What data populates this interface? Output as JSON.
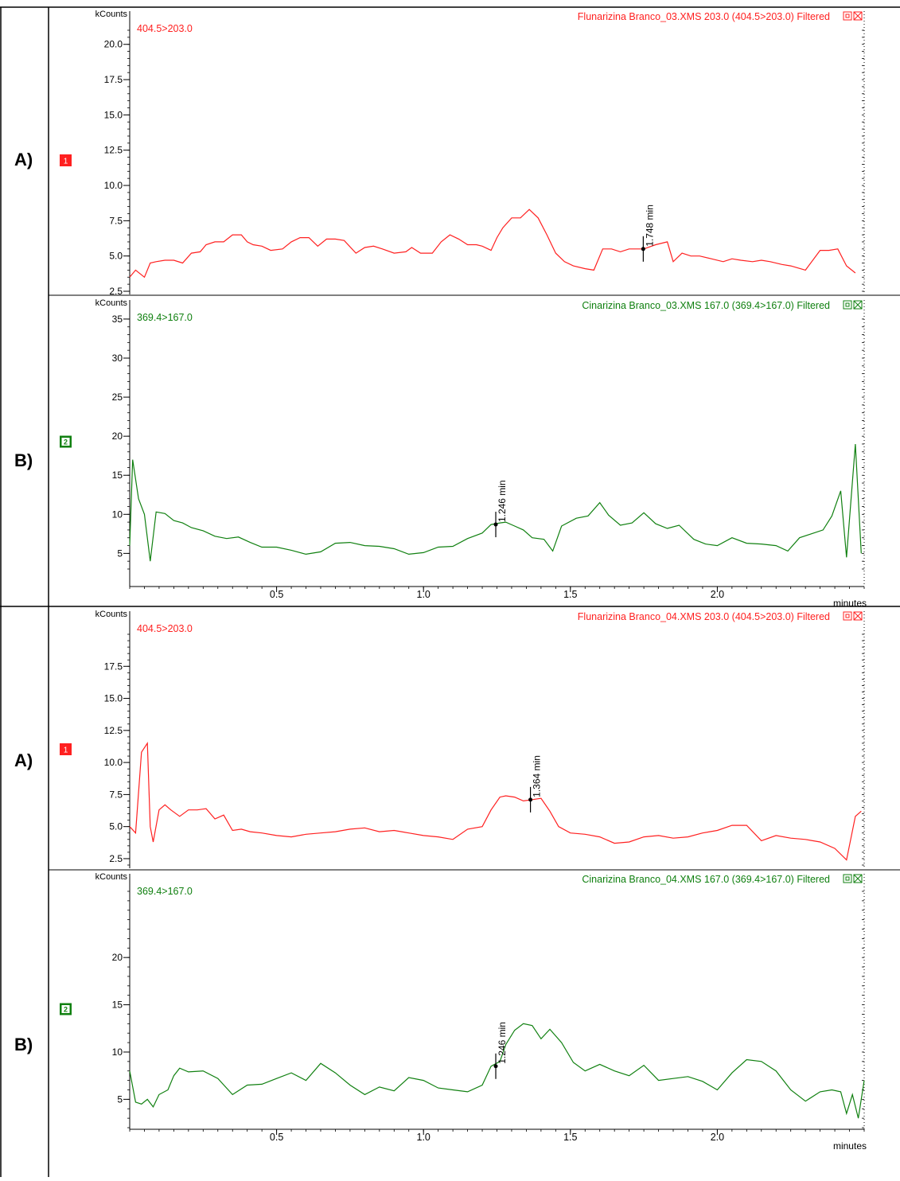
{
  "section_labels": [
    "A)",
    "B)",
    "A)",
    "B)"
  ],
  "colors": {
    "red": "#ff2020",
    "green": "#108010",
    "axis": "#000000"
  },
  "chart_data": [
    {
      "type": "line",
      "series_color": "#ff2020",
      "header": "Flunarizina Branco_03.XMS 203.0 (404.5>203.0) Filtered",
      "trace_label": "404.5>203.0",
      "ylabel": "kCounts",
      "badge": "1",
      "ylim": [
        2.5,
        21.0
      ],
      "xlim": [
        0,
        2.5
      ],
      "yticks": [
        2.5,
        5.0,
        7.5,
        10.0,
        12.5,
        15.0,
        17.5,
        20.0
      ],
      "ytick_labels": [
        "2.5",
        "5.0",
        "7.5",
        "10.0",
        "12.5",
        "15.0",
        "17.5",
        "20.0"
      ],
      "annotation": {
        "x": 1.748,
        "y": 5.5,
        "label": "1.748 min"
      },
      "x": [
        0.0,
        0.02,
        0.05,
        0.07,
        0.09,
        0.12,
        0.15,
        0.18,
        0.21,
        0.24,
        0.26,
        0.29,
        0.32,
        0.35,
        0.38,
        0.4,
        0.42,
        0.45,
        0.48,
        0.52,
        0.55,
        0.58,
        0.61,
        0.64,
        0.67,
        0.7,
        0.73,
        0.77,
        0.8,
        0.83,
        0.86,
        0.9,
        0.94,
        0.96,
        0.99,
        1.03,
        1.06,
        1.09,
        1.12,
        1.15,
        1.18,
        1.2,
        1.23,
        1.25,
        1.27,
        1.3,
        1.33,
        1.36,
        1.39,
        1.42,
        1.45,
        1.48,
        1.51,
        1.55,
        1.58,
        1.61,
        1.64,
        1.67,
        1.7,
        1.73,
        1.75,
        1.79,
        1.83,
        1.85,
        1.88,
        1.91,
        1.94,
        1.98,
        2.02,
        2.05,
        2.08,
        2.12,
        2.15,
        2.18,
        2.22,
        2.25,
        2.3,
        2.35,
        2.38,
        2.41,
        2.44,
        2.47
      ],
      "values": [
        3.5,
        4.0,
        3.5,
        4.5,
        4.6,
        4.7,
        4.7,
        4.5,
        5.2,
        5.3,
        5.8,
        6.0,
        6.0,
        6.5,
        6.5,
        6.0,
        5.8,
        5.7,
        5.4,
        5.5,
        6.0,
        6.3,
        6.3,
        5.7,
        6.2,
        6.2,
        6.1,
        5.2,
        5.6,
        5.7,
        5.5,
        5.2,
        5.3,
        5.6,
        5.2,
        5.2,
        6.0,
        6.5,
        6.2,
        5.8,
        5.8,
        5.7,
        5.4,
        6.3,
        7.0,
        7.7,
        7.7,
        8.3,
        7.7,
        6.5,
        5.2,
        4.6,
        4.3,
        4.1,
        4.0,
        5.5,
        5.5,
        5.3,
        5.5,
        5.5,
        5.5,
        5.8,
        6.0,
        4.6,
        5.2,
        5.0,
        5.0,
        4.8,
        4.6,
        4.8,
        4.7,
        4.6,
        4.7,
        4.6,
        4.4,
        4.3,
        4.0,
        5.4,
        5.4,
        5.5,
        4.3,
        3.8
      ]
    },
    {
      "type": "line",
      "series_color": "#108010",
      "header": "Cinarizina Branco_03.XMS 167.0 (369.4>167.0) Filtered",
      "trace_label": "369.4>167.0",
      "ylabel": "kCounts",
      "badge": "2",
      "ylim": [
        3.0,
        35.5
      ],
      "xlim": [
        0,
        2.5
      ],
      "yticks": [
        5,
        10,
        15,
        20,
        25,
        30,
        35
      ],
      "ytick_labels": [
        "5",
        "10",
        "15",
        "20",
        "25",
        "30",
        "35"
      ],
      "xticks": [
        0.5,
        1.0,
        1.5,
        2.0
      ],
      "xtick_labels": [
        "0.5",
        "1.0",
        "1.5",
        "2.0"
      ],
      "xlabel": "minutes",
      "annotation": {
        "x": 1.246,
        "y": 8.7,
        "label": "1.246 min"
      },
      "x": [
        0.0,
        0.01,
        0.03,
        0.05,
        0.07,
        0.09,
        0.12,
        0.15,
        0.18,
        0.21,
        0.25,
        0.29,
        0.33,
        0.37,
        0.41,
        0.45,
        0.5,
        0.55,
        0.6,
        0.65,
        0.7,
        0.75,
        0.8,
        0.85,
        0.9,
        0.95,
        1.0,
        1.05,
        1.1,
        1.15,
        1.2,
        1.23,
        1.26,
        1.28,
        1.31,
        1.34,
        1.37,
        1.41,
        1.44,
        1.47,
        1.52,
        1.56,
        1.6,
        1.63,
        1.67,
        1.71,
        1.75,
        1.79,
        1.83,
        1.87,
        1.92,
        1.96,
        2.0,
        2.05,
        2.1,
        2.15,
        2.2,
        2.24,
        2.28,
        2.32,
        2.36,
        2.39,
        2.42,
        2.44,
        2.47,
        2.49
      ],
      "values": [
        6.0,
        17.0,
        12.0,
        10.0,
        4.0,
        10.3,
        10.1,
        9.2,
        8.9,
        8.3,
        7.9,
        7.2,
        6.9,
        7.1,
        6.4,
        5.8,
        5.8,
        5.4,
        4.9,
        5.2,
        6.3,
        6.4,
        6.0,
        5.9,
        5.6,
        4.9,
        5.1,
        5.8,
        5.9,
        6.9,
        7.6,
        8.7,
        8.9,
        9.0,
        8.5,
        8.0,
        7.0,
        6.8,
        5.3,
        8.5,
        9.5,
        9.8,
        11.5,
        9.9,
        8.6,
        8.9,
        10.2,
        8.8,
        8.2,
        8.6,
        6.8,
        6.2,
        6.0,
        7.0,
        6.3,
        6.2,
        6.0,
        5.3,
        7.0,
        7.5,
        8.0,
        9.8,
        13.0,
        4.5,
        19.0,
        5.0
      ]
    },
    {
      "type": "line",
      "series_color": "#ff2020",
      "header": "Flunarizina Branco_04.XMS 203.0 (404.5>203.0) Filtered",
      "trace_label": "404.5>203.0",
      "ylabel": "kCounts",
      "badge": "1",
      "ylim": [
        2.0,
        20.0
      ],
      "xlim": [
        0,
        2.5
      ],
      "yticks": [
        2.5,
        5.0,
        7.5,
        10.0,
        12.5,
        15.0,
        17.5
      ],
      "ytick_labels": [
        "2.5",
        "5.0",
        "7.5",
        "10.0",
        "12.5",
        "15.0",
        "17.5"
      ],
      "annotation": {
        "x": 1.364,
        "y": 7.1,
        "label": "1.364 min"
      },
      "x": [
        0.0,
        0.02,
        0.04,
        0.06,
        0.07,
        0.08,
        0.1,
        0.12,
        0.14,
        0.17,
        0.2,
        0.23,
        0.26,
        0.29,
        0.32,
        0.35,
        0.38,
        0.41,
        0.45,
        0.5,
        0.55,
        0.6,
        0.65,
        0.7,
        0.75,
        0.8,
        0.85,
        0.9,
        0.95,
        1.0,
        1.05,
        1.1,
        1.15,
        1.2,
        1.23,
        1.26,
        1.28,
        1.31,
        1.34,
        1.37,
        1.4,
        1.43,
        1.46,
        1.5,
        1.55,
        1.6,
        1.65,
        1.7,
        1.75,
        1.8,
        1.85,
        1.9,
        1.95,
        2.0,
        2.05,
        2.1,
        2.15,
        2.2,
        2.25,
        2.3,
        2.35,
        2.4,
        2.44,
        2.47,
        2.49
      ],
      "values": [
        5.0,
        4.5,
        10.8,
        11.5,
        5.0,
        3.8,
        6.3,
        6.7,
        6.3,
        5.8,
        6.3,
        6.3,
        6.4,
        5.6,
        5.9,
        4.7,
        4.8,
        4.6,
        4.5,
        4.3,
        4.2,
        4.4,
        4.5,
        4.6,
        4.8,
        4.9,
        4.6,
        4.7,
        4.5,
        4.3,
        4.2,
        4.0,
        4.8,
        5.0,
        6.3,
        7.3,
        7.4,
        7.3,
        7.0,
        7.1,
        7.2,
        6.2,
        5.0,
        4.5,
        4.4,
        4.2,
        3.7,
        3.8,
        4.2,
        4.3,
        4.1,
        4.2,
        4.5,
        4.7,
        5.1,
        5.1,
        3.9,
        4.3,
        4.1,
        4.0,
        3.8,
        3.3,
        2.4,
        5.8,
        6.2
      ]
    },
    {
      "type": "line",
      "series_color": "#108010",
      "header": "Cinarizina Branco_04.XMS 167.0 (369.4>167.0) Filtered",
      "trace_label": "369.4>167.0",
      "ylabel": "kCounts",
      "badge": "2",
      "ylim": [
        2.0,
        27.0
      ],
      "xlim": [
        0,
        2.5
      ],
      "yticks": [
        5,
        10,
        15,
        20
      ],
      "ytick_labels": [
        "5",
        "10",
        "15",
        "20"
      ],
      "xticks": [
        0.5,
        1.0,
        1.5,
        2.0
      ],
      "xtick_labels": [
        "0.5",
        "1.0",
        "1.5",
        "2.0"
      ],
      "xlabel": "minutes",
      "annotation": {
        "x": 1.246,
        "y": 8.5,
        "label": "1.246 min"
      },
      "x": [
        0.0,
        0.02,
        0.04,
        0.06,
        0.08,
        0.1,
        0.13,
        0.15,
        0.17,
        0.2,
        0.25,
        0.3,
        0.35,
        0.4,
        0.45,
        0.5,
        0.55,
        0.6,
        0.65,
        0.7,
        0.75,
        0.8,
        0.85,
        0.9,
        0.95,
        1.0,
        1.05,
        1.1,
        1.15,
        1.2,
        1.23,
        1.26,
        1.28,
        1.31,
        1.34,
        1.37,
        1.4,
        1.43,
        1.47,
        1.51,
        1.55,
        1.6,
        1.65,
        1.7,
        1.75,
        1.8,
        1.85,
        1.9,
        1.95,
        2.0,
        2.05,
        2.1,
        2.15,
        2.2,
        2.25,
        2.3,
        2.35,
        2.39,
        2.42,
        2.44,
        2.46,
        2.48,
        2.5
      ],
      "values": [
        8.0,
        4.7,
        4.5,
        5.0,
        4.2,
        5.5,
        6.0,
        7.5,
        8.3,
        7.9,
        8.0,
        7.2,
        5.5,
        6.5,
        6.6,
        7.2,
        7.8,
        7.0,
        8.8,
        7.8,
        6.5,
        5.5,
        6.3,
        5.9,
        7.3,
        7.0,
        6.2,
        6.0,
        5.8,
        6.5,
        8.5,
        9.0,
        10.8,
        12.3,
        13.0,
        12.8,
        11.4,
        12.4,
        11.0,
        8.9,
        8.0,
        8.7,
        8.0,
        7.5,
        8.6,
        7.0,
        7.2,
        7.4,
        6.9,
        6.0,
        7.8,
        9.2,
        9.0,
        8.0,
        6.0,
        4.8,
        5.8,
        6.0,
        5.8,
        3.5,
        5.5,
        3.0,
        7.0
      ]
    }
  ]
}
